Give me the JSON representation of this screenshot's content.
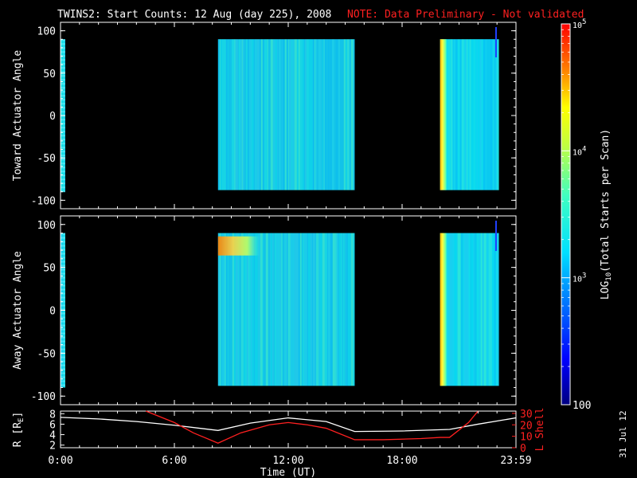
{
  "title": "TWINS2: Start Counts: 12 Aug (day 225), 2008",
  "note": "NOTE: Data Preliminary - Not validated",
  "date_stamp": "31 Jul 12",
  "colors": {
    "background": "#000000",
    "axes": "#ffffff",
    "note": "#ff2020",
    "lshell": "#ff2020",
    "radius": "#ffffff"
  },
  "chart_data": [
    {
      "type": "heatmap",
      "ylabel": "Toward Actuator Angle",
      "ylim": [
        -110,
        110
      ],
      "yticks": [
        100,
        50,
        0,
        -50,
        -100
      ],
      "xlim": [
        0,
        24
      ],
      "data_blocks": [
        {
          "t_start": 0.0,
          "t_end": 0.25,
          "angle_min": -90,
          "angle_max": 90,
          "level": "1e3",
          "pattern": "striped"
        },
        {
          "t_start": 8.3,
          "t_end": 15.5,
          "angle_min": -88,
          "angle_max": 90,
          "level": "1e3-3e3"
        },
        {
          "t_start": 20.0,
          "t_end": 23.1,
          "angle_min": -88,
          "angle_max": 90,
          "level": "1e3",
          "leading_edge_level": "3e4"
        }
      ]
    },
    {
      "type": "heatmap",
      "ylabel": "Away Actuator Angle",
      "ylim": [
        -110,
        110
      ],
      "yticks": [
        100,
        50,
        0,
        -50,
        -100
      ],
      "xlim": [
        0,
        24
      ],
      "data_blocks": [
        {
          "t_start": 0.0,
          "t_end": 0.25,
          "angle_min": -90,
          "angle_max": 90,
          "level": "1e3",
          "pattern": "striped"
        },
        {
          "t_start": 8.3,
          "t_end": 15.5,
          "angle_min": -88,
          "angle_max": 90,
          "level": "1e3-3e3",
          "hot_spot": {
            "t_start": 8.3,
            "t_end": 10.5,
            "angle": 75,
            "level": "3e4"
          }
        },
        {
          "t_start": 20.0,
          "t_end": 23.1,
          "angle_min": -88,
          "angle_max": 90,
          "level": "1e3",
          "leading_edge_level": "3e4"
        }
      ]
    },
    {
      "type": "line",
      "ylabel": "R [R_E]",
      "ylabel_parts": {
        "main": "R [R",
        "sub": "E",
        "end": "]"
      },
      "ylim": [
        1.5,
        8.5
      ],
      "yticks": [
        2,
        4,
        6,
        8
      ],
      "y2label": "L Shell",
      "y2lim": [
        0,
        32
      ],
      "y2ticks": [
        0,
        10,
        20,
        30
      ],
      "xlabel": "Time (UT)",
      "xticks": [
        "0:00",
        "6:00",
        "12:00",
        "18:00",
        "23:59"
      ],
      "xtick_values": [
        0,
        6,
        12,
        18,
        24
      ],
      "series": [
        {
          "axis": "left",
          "x": [
            0,
            2,
            4,
            6,
            8.3,
            10,
            12,
            14,
            15.5,
            18,
            20.5,
            22,
            24
          ],
          "y": [
            7.3,
            7.0,
            6.5,
            5.8,
            4.8,
            6.2,
            7.2,
            6.5,
            4.6,
            4.7,
            5.0,
            6.0,
            7.2
          ]
        },
        {
          "axis": "right",
          "x": [
            4.5,
            6,
            7,
            8.3,
            9.5,
            11,
            12,
            13,
            14,
            15.5,
            17,
            19,
            20,
            20.5,
            21.5,
            22
          ],
          "y": [
            32,
            22,
            13,
            4,
            13,
            20,
            22,
            20,
            17,
            7,
            7,
            8,
            9,
            9,
            22,
            32
          ]
        }
      ]
    }
  ],
  "colorbar": {
    "label_main": "LOG",
    "label_sub": "10",
    "label_rest": "(Total Starts per Scan)",
    "range": [
      100,
      100000
    ],
    "ticks": [
      {
        "value": 100000,
        "base": "10",
        "exp": "5"
      },
      {
        "value": 10000,
        "base": "10",
        "exp": "4"
      },
      {
        "value": 1000,
        "base": "10",
        "exp": "3"
      },
      {
        "value": 100,
        "label": "100"
      }
    ]
  }
}
